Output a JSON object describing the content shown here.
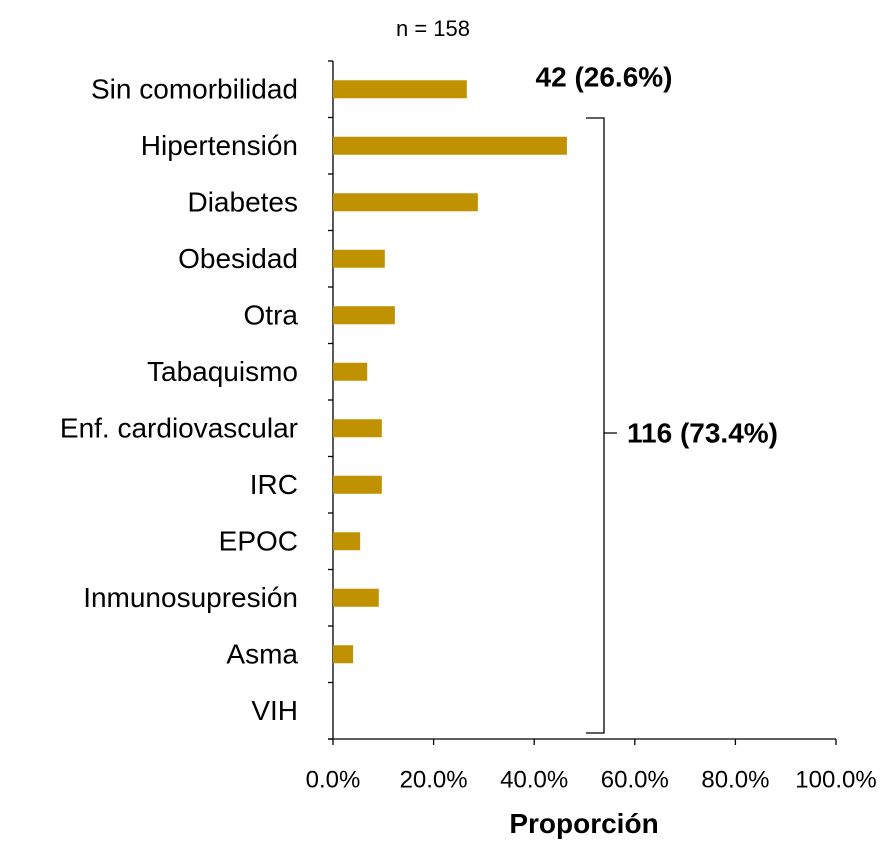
{
  "chart_data": {
    "type": "bar",
    "orientation": "horizontal",
    "subtitle": "n = 158",
    "x_label": "Proporción",
    "categories": [
      "Sin comorbilidad",
      "Hipertensión",
      "Diabetes",
      "Obesidad",
      "Otra",
      "Tabaquismo",
      "Enf. cardiovascular",
      "IRC",
      "EPOC",
      "Inmunosupresión",
      "Asma",
      "VIH"
    ],
    "values": [
      26.6,
      46.5,
      28.8,
      10.3,
      12.3,
      6.8,
      9.7,
      9.7,
      5.4,
      9.1,
      4.0,
      0
    ],
    "color": "#c09100",
    "xlim": [
      0,
      100
    ],
    "xticks": [
      {
        "value": 0,
        "label": "0.0%"
      },
      {
        "value": 20,
        "label": "20.0%"
      },
      {
        "value": 40,
        "label": "40.0%"
      },
      {
        "value": 60,
        "label": "60.0%"
      },
      {
        "value": 80,
        "label": "80.0%"
      },
      {
        "value": 100,
        "label": "100.0%"
      }
    ],
    "annotations": [
      "42 (26.6%)",
      "116 (73.4%)"
    ]
  }
}
